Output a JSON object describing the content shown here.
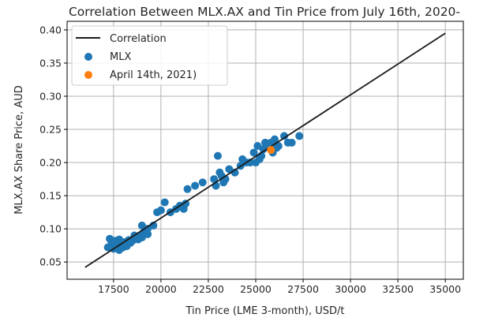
{
  "chart_data": {
    "type": "scatter",
    "title": "Correlation Between MLX.AX and Tin Price from July 16th, 2020-",
    "xlabel": "Tin Price (LME 3-month), USD/t",
    "ylabel": "MLX.AX Share Price, AUD",
    "xlim": [
      15050,
      35950
    ],
    "ylim": [
      0.024,
      0.413
    ],
    "xticks": [
      17500,
      20000,
      22500,
      25000,
      27500,
      30000,
      32500,
      35000
    ],
    "yticks": [
      0.05,
      0.1,
      0.15,
      0.2,
      0.25,
      0.3,
      0.35,
      0.4
    ],
    "xtick_labels": [
      "17500",
      "20000",
      "22500",
      "25000",
      "27500",
      "30000",
      "32500",
      "35000"
    ],
    "ytick_labels": [
      "0.05",
      "0.10",
      "0.15",
      "0.20",
      "0.25",
      "0.30",
      "0.35",
      "0.40"
    ],
    "grid": true,
    "legend_position": "top-left",
    "colors": {
      "line": "#1a1a1a",
      "mlx": "#1f77b4",
      "highlight": "#ff7f0e",
      "grid": "#b0b0b0"
    },
    "series": [
      {
        "name": "Correlation",
        "kind": "line",
        "x": [
          16000,
          35000
        ],
        "y": [
          0.042,
          0.395
        ]
      },
      {
        "name": "MLX",
        "kind": "scatter",
        "x": [
          17200,
          17300,
          17400,
          17500,
          17600,
          17700,
          17800,
          17900,
          18000,
          18100,
          18200,
          18300,
          18400,
          18500,
          18600,
          18700,
          18800,
          18900,
          19000,
          19100,
          19000,
          19300,
          19600,
          19800,
          20000,
          20200,
          20500,
          20800,
          21000,
          21200,
          21400,
          21300,
          22200,
          22800,
          22900,
          23000,
          23100,
          23200,
          23300,
          23400,
          23600,
          23900,
          24200,
          24300,
          24500,
          24700,
          24900,
          25100,
          25200,
          25300,
          25400,
          25500,
          25600,
          25800,
          26000,
          25900,
          26200,
          26500,
          26700,
          26900,
          27300,
          17800,
          18000,
          18600,
          19300,
          21800,
          25000,
          26100
        ],
        "y": [
          0.072,
          0.085,
          0.078,
          0.07,
          0.082,
          0.075,
          0.084,
          0.072,
          0.078,
          0.08,
          0.074,
          0.083,
          0.079,
          0.082,
          0.086,
          0.088,
          0.084,
          0.09,
          0.087,
          0.095,
          0.105,
          0.1,
          0.105,
          0.125,
          0.128,
          0.14,
          0.125,
          0.13,
          0.135,
          0.13,
          0.16,
          0.138,
          0.17,
          0.175,
          0.165,
          0.21,
          0.185,
          0.18,
          0.17,
          0.175,
          0.19,
          0.185,
          0.195,
          0.205,
          0.2,
          0.2,
          0.215,
          0.225,
          0.205,
          0.21,
          0.22,
          0.23,
          0.225,
          0.23,
          0.235,
          0.215,
          0.225,
          0.24,
          0.23,
          0.23,
          0.24,
          0.068,
          0.072,
          0.09,
          0.092,
          0.165,
          0.2,
          0.222
        ]
      },
      {
        "name": "April 14th, 2021)",
        "kind": "scatter",
        "x": [
          25800
        ],
        "y": [
          0.219
        ]
      }
    ]
  }
}
